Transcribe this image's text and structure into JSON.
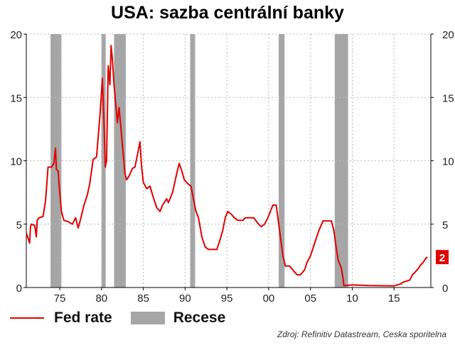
{
  "chart_data": {
    "type": "line",
    "title": "USA: sazba centrální banky",
    "ylim": [
      0,
      20
    ],
    "xlim": [
      1971.0,
      2019.4
    ],
    "y_ticks": [
      0,
      5,
      10,
      15,
      20
    ],
    "x_ticks": [
      {
        "value": 1975,
        "label": "75"
      },
      {
        "value": 1980,
        "label": "80"
      },
      {
        "value": 1985,
        "label": "85"
      },
      {
        "value": 1990,
        "label": "90"
      },
      {
        "value": 1995,
        "label": "95"
      },
      {
        "value": 2000,
        "label": "00"
      },
      {
        "value": 2005,
        "label": "05"
      },
      {
        "value": 2010,
        "label": "10"
      },
      {
        "value": 2015,
        "label": "15"
      }
    ],
    "grid": "dashed",
    "axes": "dual-y (left and right)",
    "legend_position": "bottom-left",
    "recessions": [
      {
        "start": 1973.9,
        "end": 1975.2
      },
      {
        "start": 1980.0,
        "end": 1980.5
      },
      {
        "start": 1981.5,
        "end": 1982.9
      },
      {
        "start": 1990.6,
        "end": 1991.2
      },
      {
        "start": 2001.2,
        "end": 2001.9
      },
      {
        "start": 2007.9,
        "end": 2009.5
      }
    ],
    "series": [
      {
        "name": "Fed rate",
        "color": "#e00000",
        "x": [
          1971.0,
          1971.2,
          1971.4,
          1971.5,
          1971.6,
          1972.0,
          1972.2,
          1972.3,
          1972.5,
          1973.0,
          1973.3,
          1973.6,
          1974.0,
          1974.3,
          1974.5,
          1974.6,
          1974.8,
          1975.0,
          1975.2,
          1975.5,
          1976.0,
          1976.5,
          1976.9,
          1977.2,
          1977.5,
          1977.9,
          1978.3,
          1978.6,
          1979.0,
          1979.4,
          1979.8,
          1980.1,
          1980.3,
          1980.45,
          1980.6,
          1980.8,
          1981.0,
          1981.15,
          1981.3,
          1981.5,
          1981.7,
          1981.9,
          1982.1,
          1982.4,
          1982.6,
          1982.8,
          1983.0,
          1983.3,
          1983.7,
          1984.0,
          1984.3,
          1984.6,
          1984.8,
          1985.0,
          1985.4,
          1985.8,
          1986.2,
          1986.6,
          1987.0,
          1987.3,
          1987.6,
          1987.8,
          1988.0,
          1988.5,
          1989.0,
          1989.3,
          1989.6,
          1989.9,
          1990.3,
          1990.7,
          1991.0,
          1991.3,
          1991.6,
          1992.0,
          1992.4,
          1992.8,
          1993.3,
          1993.8,
          1994.1,
          1994.5,
          1994.8,
          1995.1,
          1995.5,
          1995.9,
          1996.3,
          1996.9,
          1997.2,
          1997.7,
          1998.2,
          1998.8,
          1999.1,
          1999.5,
          1999.9,
          2000.2,
          2000.5,
          2000.9,
          2001.1,
          2001.4,
          2001.7,
          2002.0,
          2002.5,
          2003.0,
          2003.4,
          2003.8,
          2004.3,
          2004.6,
          2005.0,
          2005.5,
          2006.0,
          2006.5,
          2007.0,
          2007.5,
          2007.8,
          2008.0,
          2008.3,
          2008.7,
          2008.9,
          2009.0,
          2010.0,
          2012.0,
          2015.0,
          2015.9,
          2016.0,
          2016.9,
          2017.2,
          2017.5,
          2017.9,
          2018.2,
          2018.5,
          2018.8,
          2019.0
        ],
        "values": [
          4.3,
          3.9,
          3.5,
          4.8,
          5.0,
          4.9,
          4.0,
          5.3,
          5.5,
          5.6,
          6.8,
          9.5,
          9.5,
          9.8,
          11.0,
          9.3,
          9.2,
          7.5,
          6.0,
          5.3,
          5.2,
          5.0,
          5.5,
          4.7,
          5.4,
          6.5,
          7.3,
          8.2,
          10.1,
          10.3,
          13.5,
          16.5,
          13.0,
          9.5,
          10.0,
          17.5,
          16.0,
          19.1,
          18.0,
          16.0,
          14.5,
          13.0,
          14.2,
          12.0,
          10.5,
          9.0,
          8.5,
          8.8,
          9.4,
          9.5,
          10.5,
          11.5,
          9.5,
          8.3,
          7.8,
          8.0,
          7.1,
          6.3,
          6.0,
          6.5,
          6.8,
          7.0,
          6.7,
          7.5,
          9.0,
          9.8,
          9.2,
          8.5,
          8.2,
          8.0,
          7.0,
          6.0,
          5.5,
          4.0,
          3.2,
          3.0,
          3.0,
          3.0,
          3.6,
          4.5,
          5.5,
          6.0,
          5.8,
          5.5,
          5.3,
          5.3,
          5.5,
          5.5,
          5.5,
          5.0,
          4.8,
          5.0,
          5.5,
          6.0,
          6.5,
          6.5,
          5.5,
          4.0,
          2.5,
          1.7,
          1.7,
          1.3,
          1.0,
          1.0,
          1.4,
          2.0,
          2.5,
          3.5,
          4.5,
          5.25,
          5.25,
          5.25,
          4.5,
          3.5,
          2.2,
          1.5,
          0.7,
          0.15,
          0.2,
          0.15,
          0.13,
          0.3,
          0.4,
          0.6,
          1.0,
          1.2,
          1.5,
          1.8,
          2.0,
          2.3,
          2.4
        ]
      }
    ],
    "last_value_label": "2"
  },
  "legend": {
    "line_label": "Fed rate",
    "bar_label": "Recese"
  },
  "source": "Zdroj: Refinitiv Datastream, Ceska sporitelna"
}
